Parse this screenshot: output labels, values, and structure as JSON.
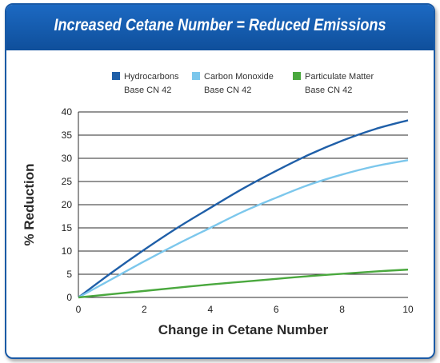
{
  "chart_data": {
    "type": "line",
    "title": "Increased Cetane Number = Reduced Emissions",
    "xlabel": "Change in Cetane Number",
    "ylabel": "% Reduction",
    "xlim": [
      0,
      10
    ],
    "ylim": [
      0,
      40
    ],
    "xticks": [
      0,
      2,
      4,
      6,
      8,
      10
    ],
    "yticks": [
      0,
      5,
      10,
      15,
      20,
      25,
      30,
      35,
      40
    ],
    "grid": "horizontal",
    "legend_position": "top",
    "series": [
      {
        "name": "Hydrocarbons",
        "sublabel": "Base CN 42",
        "color": "#1f5fa8",
        "x": [
          0,
          1,
          2,
          3,
          4,
          5,
          6,
          7,
          8,
          9,
          10
        ],
        "y": [
          0,
          5.3,
          10.3,
          15.0,
          19.3,
          23.5,
          27.3,
          30.8,
          33.8,
          36.3,
          38.2
        ]
      },
      {
        "name": "Carbon Monoxide",
        "sublabel": "Base CN 42",
        "color": "#7cc7ec",
        "x": [
          0,
          1,
          2,
          3,
          4,
          5,
          6,
          7,
          8,
          9,
          10
        ],
        "y": [
          0,
          3.9,
          7.8,
          11.5,
          15.0,
          18.5,
          21.5,
          24.3,
          26.5,
          28.3,
          29.6
        ]
      },
      {
        "name": "Particulate Matter",
        "sublabel": "Base CN 42",
        "color": "#4aa83e",
        "x": [
          0,
          1,
          2,
          3,
          4,
          5,
          6,
          7,
          8,
          9,
          10
        ],
        "y": [
          0,
          0.7,
          1.4,
          2.1,
          2.8,
          3.4,
          4.0,
          4.6,
          5.1,
          5.6,
          6.0
        ]
      }
    ]
  }
}
